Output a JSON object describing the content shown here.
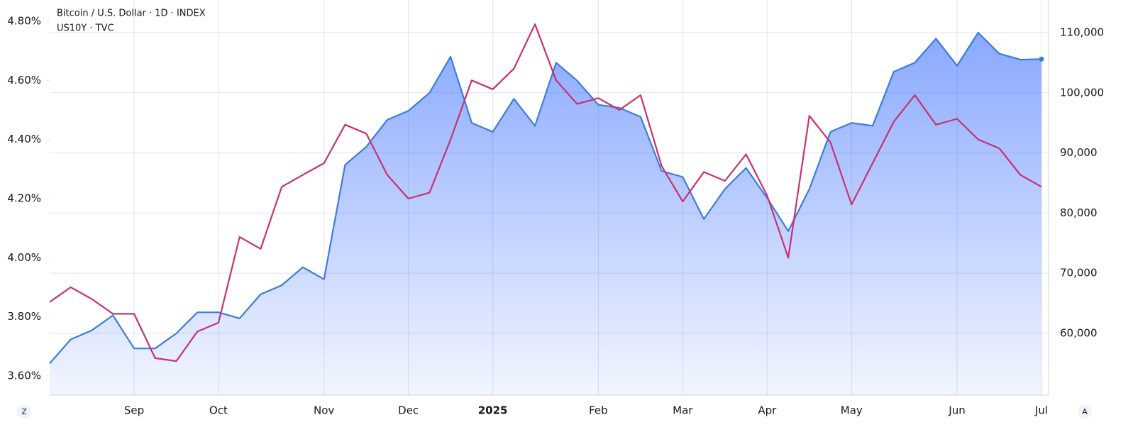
{
  "chart_data": {
    "type": "line",
    "legend": [
      "Bitcoin / U.S. Dollar · 1D · INDEX",
      "US10Y · TVC"
    ],
    "categories": [
      null,
      null,
      null,
      null,
      "Sep",
      null,
      null,
      null,
      "Oct",
      null,
      null,
      null,
      null,
      "Nov",
      null,
      null,
      null,
      "Dec",
      null,
      null,
      null,
      "2025",
      null,
      null,
      null,
      null,
      "Feb",
      null,
      null,
      null,
      "Mar",
      null,
      null,
      null,
      "Apr",
      null,
      null,
      null,
      "May",
      null,
      null,
      null,
      null,
      "Jun",
      null,
      null,
      null,
      "Jul"
    ],
    "series": [
      {
        "name": "Bitcoin / U.S. Dollar · 1D · INDEX",
        "color": "#3b7ddd",
        "axis": "y2",
        "area": true,
        "values": [
          55000,
          59000,
          60500,
          63000,
          57500,
          57500,
          60000,
          63500,
          63500,
          62500,
          66500,
          68000,
          71000,
          69000,
          88000,
          91000,
          95500,
          97000,
          100000,
          106000,
          95000,
          93500,
          99000,
          94500,
          105000,
          102000,
          98000,
          97500,
          96000,
          87000,
          86000,
          79000,
          84000,
          87500,
          82500,
          77000,
          84000,
          93500,
          95000,
          94500,
          103500,
          105000,
          109000,
          104500,
          110000,
          106500,
          105500,
          105600
        ]
      },
      {
        "name": "US10Y · TVC",
        "color": "#c8316e",
        "axis": "y",
        "values": [
          3.85,
          3.9,
          3.86,
          3.81,
          3.81,
          3.66,
          3.65,
          3.75,
          3.78,
          4.07,
          4.03,
          4.24,
          4.28,
          4.32,
          4.45,
          4.42,
          4.28,
          4.2,
          4.22,
          4.4,
          4.6,
          4.57,
          4.64,
          4.79,
          4.6,
          4.52,
          4.54,
          4.5,
          4.55,
          4.31,
          4.19,
          4.29,
          4.26,
          4.35,
          4.21,
          4.0,
          4.48,
          4.39,
          4.18,
          4.32,
          4.46,
          4.55,
          4.45,
          4.47,
          4.4,
          4.37,
          4.28,
          4.24
        ]
      }
    ],
    "ylim": [
      3.535,
      4.872
    ],
    "yticks": [
      {
        "value": 3.6,
        "label": "3.60%"
      },
      {
        "value": 3.8,
        "label": "3.80%"
      },
      {
        "value": 4.0,
        "label": "4.00%"
      },
      {
        "value": 4.2,
        "label": "4.20%"
      },
      {
        "value": 4.4,
        "label": "4.40%"
      },
      {
        "value": 4.6,
        "label": "4.60%"
      },
      {
        "value": 4.8,
        "label": "4.80%"
      }
    ],
    "y2lim": [
      49740,
      115420
    ],
    "y2ticks": [
      {
        "value": 60000,
        "label": "60,000"
      },
      {
        "value": 70000,
        "label": "70,000"
      },
      {
        "value": 80000,
        "label": "80,000"
      },
      {
        "value": 90000,
        "label": "90,000"
      },
      {
        "value": 100000,
        "label": "100,000"
      },
      {
        "value": 110000,
        "label": "110,000"
      }
    ],
    "grid": true
  },
  "corner_buttons": [
    "Z",
    "A"
  ]
}
